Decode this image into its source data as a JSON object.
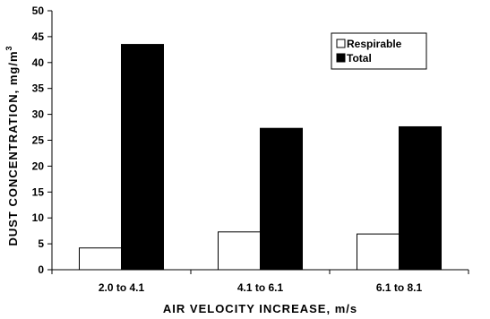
{
  "chart_data": {
    "type": "bar",
    "categories": [
      "2.0 to 4.1",
      "4.1 to 6.1",
      "6.1 to 8.1"
    ],
    "series": [
      {
        "name": "Respirable",
        "values": [
          4.2,
          7.3,
          6.9
        ],
        "color": "#ffffff"
      },
      {
        "name": "Total",
        "values": [
          43.5,
          27.3,
          27.6
        ],
        "color": "#000000"
      }
    ],
    "xlabel": "AIR VELOCITY INCREASE, m/s",
    "ylabel": "DUST CONCENTRATION, mg/m",
    "ylabel_superscript": "3",
    "ylim": [
      0,
      50
    ],
    "yticks": [
      "0",
      "5",
      "10",
      "15",
      "20",
      "25",
      "30",
      "35",
      "40",
      "45",
      "50"
    ],
    "grid": false,
    "legend_position": "top-right"
  }
}
